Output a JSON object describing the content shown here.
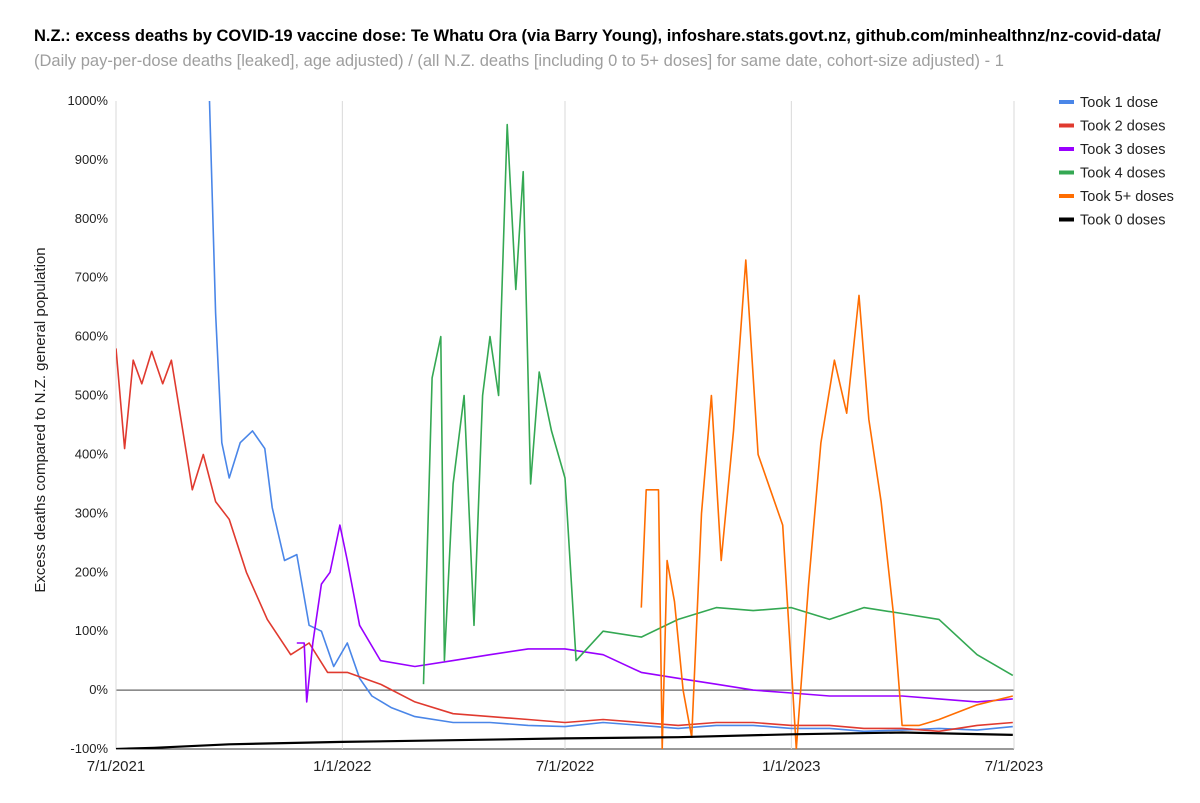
{
  "chart_data": {
    "type": "line",
    "title": "N.Z.: excess deaths by COVID-19 vaccine dose: Te Whatu Ora (via Barry Young), infoshare.stats.govt.nz, github.com/minhealthnz/nz-covid-data/",
    "subtitle": "(Daily pay-per-dose deaths [leaked], age adjusted) / (all N.Z. deaths [including 0 to 5+ doses] for same date, cohort-size adjusted) - 1",
    "xlabel": "",
    "ylabel": "Excess deaths compared to N.Z. general population",
    "x_range": [
      "2021-07-01",
      "2023-07-01"
    ],
    "x_ticks": [
      "7/1/2021",
      "1/1/2022",
      "7/1/2022",
      "1/1/2023",
      "7/1/2023"
    ],
    "ylim": [
      -100,
      1000
    ],
    "y_ticks": [
      "1000%",
      "900%",
      "800%",
      "700%",
      "600%",
      "500%",
      "400%",
      "300%",
      "200%",
      "100%",
      "0%",
      "-100%"
    ],
    "y_tick_values": [
      1000,
      900,
      800,
      700,
      600,
      500,
      400,
      300,
      200,
      100,
      0,
      -100
    ],
    "grid": "vertical at x ticks; zero baseline",
    "legend_position": "right",
    "series": [
      {
        "name": "Took 1 dose",
        "color": "#4a86e8",
        "points": [
          [
            "2021-09-15",
            1000
          ],
          [
            "2021-09-20",
            640
          ],
          [
            "2021-09-25",
            420
          ],
          [
            "2021-10-01",
            360
          ],
          [
            "2021-10-10",
            420
          ],
          [
            "2021-10-20",
            440
          ],
          [
            "2021-10-30",
            410
          ],
          [
            "2021-11-05",
            310
          ],
          [
            "2021-11-15",
            220
          ],
          [
            "2021-11-25",
            230
          ],
          [
            "2021-12-05",
            110
          ],
          [
            "2021-12-15",
            100
          ],
          [
            "2021-12-25",
            40
          ],
          [
            "2022-01-05",
            80
          ],
          [
            "2022-01-15",
            20
          ],
          [
            "2022-01-25",
            -10
          ],
          [
            "2022-02-10",
            -30
          ],
          [
            "2022-03-01",
            -45
          ],
          [
            "2022-04-01",
            -55
          ],
          [
            "2022-05-01",
            -55
          ],
          [
            "2022-06-01",
            -60
          ],
          [
            "2022-07-01",
            -62
          ],
          [
            "2022-08-01",
            -55
          ],
          [
            "2022-09-01",
            -60
          ],
          [
            "2022-10-01",
            -65
          ],
          [
            "2022-11-01",
            -60
          ],
          [
            "2022-12-01",
            -60
          ],
          [
            "2023-01-01",
            -65
          ],
          [
            "2023-02-01",
            -65
          ],
          [
            "2023-03-01",
            -70
          ],
          [
            "2023-04-01",
            -68
          ],
          [
            "2023-05-01",
            -65
          ],
          [
            "2023-06-01",
            -68
          ],
          [
            "2023-06-30",
            -62
          ]
        ]
      },
      {
        "name": "Took 2 doses",
        "color": "#e03a2f",
        "points": [
          [
            "2021-07-01",
            580
          ],
          [
            "2021-07-08",
            410
          ],
          [
            "2021-07-15",
            560
          ],
          [
            "2021-07-22",
            520
          ],
          [
            "2021-07-30",
            575
          ],
          [
            "2021-08-08",
            520
          ],
          [
            "2021-08-15",
            560
          ],
          [
            "2021-08-22",
            470
          ],
          [
            "2021-09-01",
            340
          ],
          [
            "2021-09-10",
            400
          ],
          [
            "2021-09-20",
            320
          ],
          [
            "2021-10-01",
            290
          ],
          [
            "2021-10-15",
            200
          ],
          [
            "2021-11-01",
            120
          ],
          [
            "2021-11-20",
            60
          ],
          [
            "2021-12-05",
            80
          ],
          [
            "2021-12-20",
            30
          ],
          [
            "2022-01-05",
            30
          ],
          [
            "2022-02-01",
            10
          ],
          [
            "2022-03-01",
            -20
          ],
          [
            "2022-04-01",
            -40
          ],
          [
            "2022-05-01",
            -45
          ],
          [
            "2022-06-01",
            -50
          ],
          [
            "2022-07-01",
            -55
          ],
          [
            "2022-08-01",
            -50
          ],
          [
            "2022-09-01",
            -55
          ],
          [
            "2022-10-01",
            -60
          ],
          [
            "2022-11-01",
            -55
          ],
          [
            "2022-12-01",
            -55
          ],
          [
            "2023-01-01",
            -60
          ],
          [
            "2023-02-01",
            -60
          ],
          [
            "2023-03-01",
            -65
          ],
          [
            "2023-04-01",
            -65
          ],
          [
            "2023-05-01",
            -70
          ],
          [
            "2023-06-01",
            -60
          ],
          [
            "2023-06-30",
            -55
          ]
        ]
      },
      {
        "name": "Took 3 doses",
        "color": "#9900ff",
        "points": [
          [
            "2021-11-25",
            80
          ],
          [
            "2021-12-01",
            80
          ],
          [
            "2021-12-03",
            -20
          ],
          [
            "2021-12-08",
            80
          ],
          [
            "2021-12-15",
            180
          ],
          [
            "2021-12-22",
            200
          ],
          [
            "2021-12-30",
            280
          ],
          [
            "2022-01-05",
            220
          ],
          [
            "2022-01-15",
            110
          ],
          [
            "2022-02-01",
            50
          ],
          [
            "2022-03-01",
            40
          ],
          [
            "2022-04-01",
            50
          ],
          [
            "2022-05-01",
            60
          ],
          [
            "2022-06-01",
            70
          ],
          [
            "2022-07-01",
            70
          ],
          [
            "2022-08-01",
            60
          ],
          [
            "2022-09-01",
            30
          ],
          [
            "2022-10-01",
            20
          ],
          [
            "2022-11-01",
            10
          ],
          [
            "2022-12-01",
            0
          ],
          [
            "2023-01-01",
            -5
          ],
          [
            "2023-02-01",
            -10
          ],
          [
            "2023-03-01",
            -10
          ],
          [
            "2023-04-01",
            -10
          ],
          [
            "2023-05-01",
            -15
          ],
          [
            "2023-06-01",
            -20
          ],
          [
            "2023-06-30",
            -15
          ]
        ]
      },
      {
        "name": "Took 4 doses",
        "color": "#34a853",
        "points": [
          [
            "2022-03-08",
            10
          ],
          [
            "2022-03-15",
            530
          ],
          [
            "2022-03-22",
            600
          ],
          [
            "2022-03-25",
            50
          ],
          [
            "2022-04-01",
            350
          ],
          [
            "2022-04-10",
            500
          ],
          [
            "2022-04-18",
            110
          ],
          [
            "2022-04-25",
            500
          ],
          [
            "2022-05-01",
            600
          ],
          [
            "2022-05-08",
            500
          ],
          [
            "2022-05-15",
            960
          ],
          [
            "2022-05-22",
            680
          ],
          [
            "2022-05-28",
            880
          ],
          [
            "2022-06-03",
            350
          ],
          [
            "2022-06-10",
            540
          ],
          [
            "2022-06-20",
            440
          ],
          [
            "2022-07-01",
            360
          ],
          [
            "2022-07-10",
            50
          ],
          [
            "2022-08-01",
            100
          ],
          [
            "2022-09-01",
            90
          ],
          [
            "2022-10-01",
            120
          ],
          [
            "2022-11-01",
            140
          ],
          [
            "2022-12-01",
            135
          ],
          [
            "2023-01-01",
            140
          ],
          [
            "2023-02-01",
            120
          ],
          [
            "2023-03-01",
            140
          ],
          [
            "2023-04-01",
            130
          ],
          [
            "2023-05-01",
            120
          ],
          [
            "2023-06-01",
            60
          ],
          [
            "2023-06-30",
            25
          ]
        ]
      },
      {
        "name": "Took 5+ doses",
        "color": "#ff6d01",
        "points": [
          [
            "2022-09-01",
            140
          ],
          [
            "2022-09-05",
            340
          ],
          [
            "2022-09-15",
            340
          ],
          [
            "2022-09-18",
            -100
          ],
          [
            "2022-09-22",
            220
          ],
          [
            "2022-09-28",
            150
          ],
          [
            "2022-10-05",
            0
          ],
          [
            "2022-10-12",
            -80
          ],
          [
            "2022-10-20",
            300
          ],
          [
            "2022-10-28",
            500
          ],
          [
            "2022-11-05",
            220
          ],
          [
            "2022-11-15",
            440
          ],
          [
            "2022-11-25",
            730
          ],
          [
            "2022-12-05",
            400
          ],
          [
            "2022-12-15",
            340
          ],
          [
            "2022-12-25",
            280
          ],
          [
            "2023-01-05",
            -100
          ],
          [
            "2023-01-15",
            180
          ],
          [
            "2023-01-25",
            420
          ],
          [
            "2023-02-05",
            560
          ],
          [
            "2023-02-15",
            470
          ],
          [
            "2023-02-25",
            670
          ],
          [
            "2023-03-05",
            460
          ],
          [
            "2023-03-15",
            320
          ],
          [
            "2023-03-25",
            130
          ],
          [
            "2023-04-01",
            -60
          ],
          [
            "2023-04-15",
            -60
          ],
          [
            "2023-05-01",
            -50
          ],
          [
            "2023-06-01",
            -25
          ],
          [
            "2023-06-30",
            -10
          ]
        ]
      },
      {
        "name": "Took 0 doses",
        "color": "#000000",
        "points": [
          [
            "2021-07-01",
            -100
          ],
          [
            "2021-08-01",
            -98
          ],
          [
            "2021-10-01",
            -92
          ],
          [
            "2022-01-01",
            -88
          ],
          [
            "2022-04-01",
            -85
          ],
          [
            "2022-07-01",
            -82
          ],
          [
            "2022-10-01",
            -80
          ],
          [
            "2023-01-01",
            -75
          ],
          [
            "2023-04-01",
            -72
          ],
          [
            "2023-06-30",
            -76
          ]
        ]
      }
    ]
  }
}
